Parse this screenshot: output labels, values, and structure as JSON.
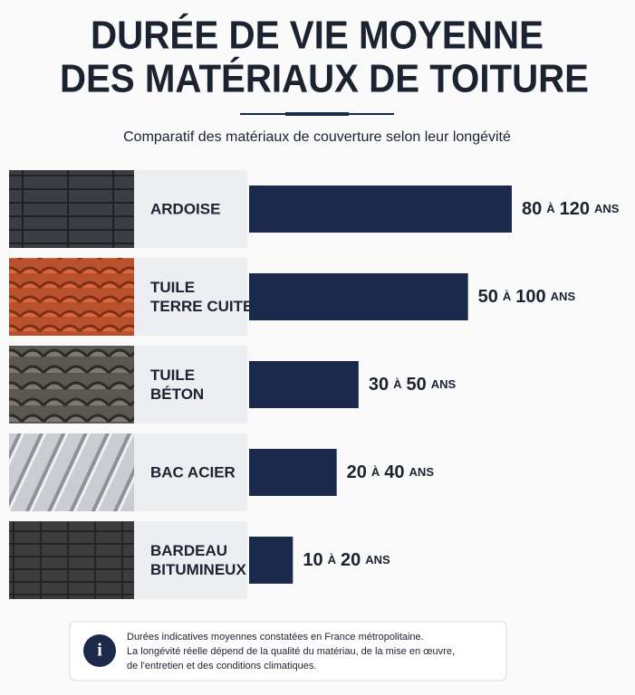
{
  "chart_data": {
    "type": "bar",
    "title": [
      "DURÉE DE VIE MOYENNE",
      "DES MATÉRIAUX DE TOITURE"
    ],
    "subtitle": "Comparatif des matériaux de couverture selon leur longévité",
    "categories": [
      [
        "ARDOISE"
      ],
      [
        "TUILE",
        "TERRE CUITE"
      ],
      [
        "TUILE",
        "BÉTON"
      ],
      [
        "BAC ACIER"
      ],
      [
        "BARDEAU",
        "BITUMINEUX"
      ]
    ],
    "low": [
      80,
      50,
      30,
      20,
      10
    ],
    "high": [
      120,
      100,
      50,
      40,
      20
    ],
    "connector": "à",
    "unit": "ans",
    "xlim": [
      0,
      120
    ],
    "color": "#1b2a4a",
    "note": [
      "Durées indicatives moyennes constatées en France métropolitaine.",
      "La longévité réelle dépend de la qualité du matériau, de la mise en œuvre,",
      "de l'entretien et des conditions climatiques."
    ]
  }
}
